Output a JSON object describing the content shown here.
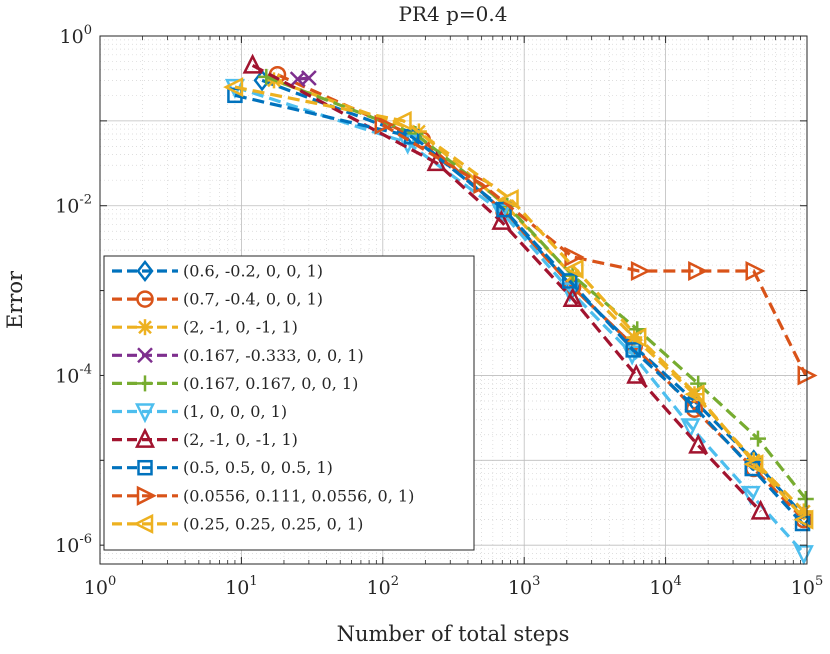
{
  "chart_data": {
    "type": "line",
    "title": "PR4 p=0.4",
    "xlabel": "Number of total steps",
    "ylabel": "Error",
    "xscale": "log",
    "yscale": "log",
    "xlim": [
      1,
      100000
    ],
    "ylim": [
      6e-07,
      1
    ],
    "grid": true,
    "legend_position": "lower-left",
    "x_ticks": [
      {
        "base": "10",
        "exp": "0",
        "value": 1
      },
      {
        "base": "10",
        "exp": "1",
        "value": 10
      },
      {
        "base": "10",
        "exp": "2",
        "value": 100
      },
      {
        "base": "10",
        "exp": "3",
        "value": 1000
      },
      {
        "base": "10",
        "exp": "4",
        "value": 10000
      },
      {
        "base": "10",
        "exp": "5",
        "value": 100000
      }
    ],
    "y_ticks": [
      {
        "base": "10",
        "exp": "0",
        "value": 1
      },
      {
        "base": "10",
        "exp": "-2",
        "value": 0.01
      },
      {
        "base": "10",
        "exp": "-4",
        "value": 0.0001
      },
      {
        "base": "10",
        "exp": "-6",
        "value": 1e-06
      }
    ],
    "series": [
      {
        "name": "(0.6, -0.2, 0, 0, 1)",
        "color": "#0072BD",
        "marker": "diamond",
        "x": [
          14,
          165,
          730,
          2200,
          6000,
          16000,
          42000,
          95000
        ],
        "y": [
          0.3,
          0.065,
          0.0085,
          0.0011,
          0.00022,
          5e-05,
          1e-05,
          2.2e-06
        ]
      },
      {
        "name": "(0.7, -0.4, 0, 0, 1)",
        "color": "#D95319",
        "marker": "circle",
        "x": [
          18,
          190,
          720,
          2200,
          6000,
          16000,
          42000,
          95000
        ],
        "y": [
          0.35,
          0.06,
          0.0085,
          0.0011,
          0.00022,
          4e-05,
          8e-06,
          2e-06
        ]
      },
      {
        "name": "(2, -1, 0, -1, 1)",
        "color": "#EDB120",
        "marker": "asterisk",
        "x": [
          17,
          180,
          740,
          2200,
          6000,
          16000,
          42000,
          95000
        ],
        "y": [
          0.3,
          0.075,
          0.01,
          0.0015,
          0.00028,
          6e-05,
          1e-05,
          2.5e-06
        ]
      },
      {
        "name": "(0.167, -0.333, 0, 0, 1)",
        "color": "#7E2F8E",
        "marker": "x",
        "x": [
          25,
          30
        ],
        "y": [
          0.31,
          0.32
        ]
      },
      {
        "name": "(0.167, 0.167, 0, 0, 1)",
        "color": "#77AC30",
        "marker": "plus",
        "x": [
          15,
          170,
          760,
          2200,
          6300,
          17000,
          45000,
          98000
        ],
        "y": [
          0.33,
          0.07,
          0.01,
          0.0015,
          0.00035,
          8e-05,
          1.8e-05,
          3.5e-06
        ]
      },
      {
        "name": "(1, 0, 0, 0, 1)",
        "color": "#4DBEEE",
        "marker": "triangle-down",
        "x": [
          9,
          150,
          690,
          2100,
          5800,
          15000,
          40000,
          95000
        ],
        "y": [
          0.25,
          0.055,
          0.0085,
          0.001,
          0.00018,
          2.5e-05,
          4e-06,
          8e-07
        ]
      },
      {
        "name": "(2, -1, 0, -1, 1)",
        "color": "#A2142F",
        "marker": "triangle-up",
        "x": [
          12,
          240,
          690,
          2200,
          6200,
          17000,
          47000
        ],
        "y": [
          0.45,
          0.032,
          0.0065,
          0.0008,
          0.0001,
          1.5e-05,
          2.5e-06
        ]
      },
      {
        "name": "(0.5, 0.5, 0, 0.5, 1)",
        "color": "#0072BD",
        "marker": "square",
        "x": [
          9,
          160,
          720,
          2100,
          5900,
          15500,
          41000,
          93000
        ],
        "y": [
          0.2,
          0.065,
          0.009,
          0.0013,
          0.0002,
          4.5e-05,
          8e-06,
          1.8e-06
        ]
      },
      {
        "name": "(0.0556, 0.111, 0.0556, 0, 1)",
        "color": "#D95319",
        "marker": "triangle-right",
        "x": [
          100,
          500,
          2200,
          6500,
          16500,
          42000,
          98000
        ],
        "y": [
          0.09,
          0.018,
          0.0025,
          0.0017,
          0.0017,
          0.0017,
          0.0001
        ]
      },
      {
        "name": "(0.25, 0.25, 0.25, 0, 1)",
        "color": "#EDB120",
        "marker": "triangle-left",
        "x": [
          9,
          140,
          800,
          2300,
          6400,
          16500,
          43000,
          97000
        ],
        "y": [
          0.25,
          0.1,
          0.012,
          0.0018,
          0.00028,
          6e-05,
          9e-06,
          2e-06
        ]
      }
    ]
  }
}
